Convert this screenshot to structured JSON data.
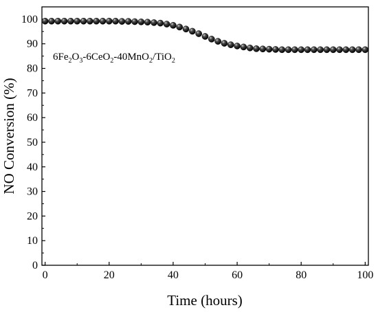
{
  "chart_data": {
    "type": "scatter",
    "title": "",
    "xlabel": "Time (hours)",
    "ylabel": "NO Conversion (%)",
    "xlim": [
      -1,
      101
    ],
    "ylim": [
      0,
      105
    ],
    "x_ticks": [
      0,
      20,
      40,
      60,
      80,
      100
    ],
    "y_ticks": [
      0,
      10,
      20,
      30,
      40,
      50,
      60,
      70,
      80,
      90,
      100
    ],
    "grid": false,
    "legend": "none",
    "marker_color": "#111111",
    "annotation": {
      "parts": [
        {
          "text": "6Fe",
          "sub": false
        },
        {
          "text": "2",
          "sub": true
        },
        {
          "text": "O",
          "sub": false
        },
        {
          "text": "3",
          "sub": true
        },
        {
          "text": "-6CeO",
          "sub": false
        },
        {
          "text": "2",
          "sub": true
        },
        {
          "text": "-40MnO",
          "sub": false
        },
        {
          "text": "2",
          "sub": true
        },
        {
          "text": "/TiO",
          "sub": false
        },
        {
          "text": "2",
          "sub": true
        }
      ]
    },
    "series": [
      {
        "x": [
          0,
          2,
          4,
          6,
          8,
          10,
          12,
          14,
          16,
          18,
          20,
          22,
          24,
          26,
          28,
          30,
          32,
          34,
          36,
          38,
          40,
          42,
          44,
          46,
          48,
          50,
          52,
          54,
          56,
          58,
          60,
          62,
          64,
          66,
          68,
          70,
          72,
          74,
          76,
          78,
          80,
          82,
          84,
          86,
          88,
          90,
          92,
          94,
          96,
          98,
          100
        ],
        "y": [
          99.2,
          99.2,
          99.2,
          99.2,
          99.2,
          99.2,
          99.2,
          99.2,
          99.2,
          99.2,
          99.2,
          99.2,
          99.1,
          99.1,
          99.0,
          98.9,
          98.8,
          98.6,
          98.4,
          98.0,
          97.5,
          96.8,
          96.0,
          95.1,
          94.1,
          93.0,
          91.9,
          91.0,
          90.2,
          89.6,
          89.1,
          88.7,
          88.3,
          88.0,
          87.9,
          87.8,
          87.7,
          87.6,
          87.6,
          87.6,
          87.6,
          87.6,
          87.6,
          87.6,
          87.6,
          87.6,
          87.6,
          87.6,
          87.6,
          87.6,
          87.6
        ]
      }
    ]
  }
}
